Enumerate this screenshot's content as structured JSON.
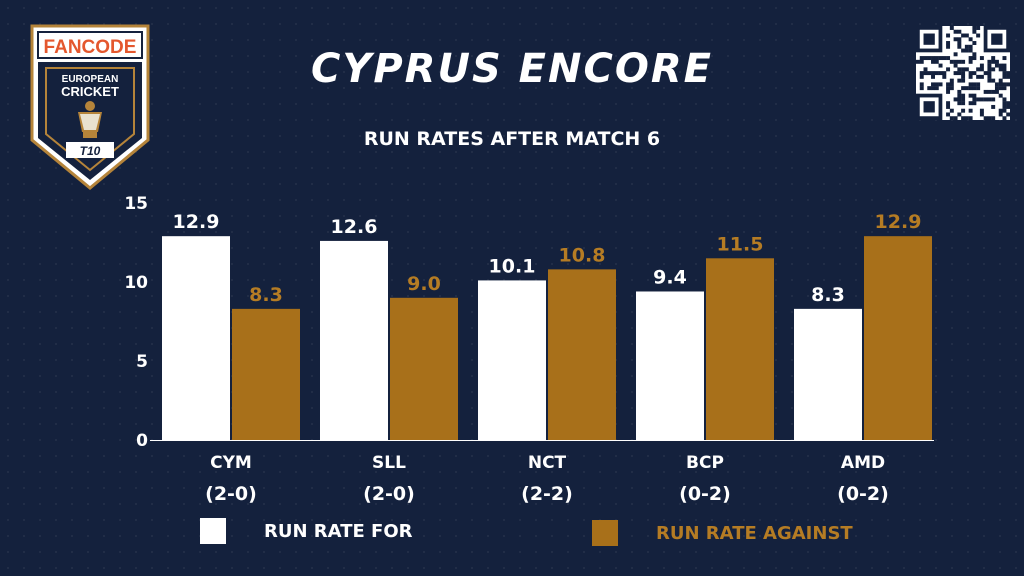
{
  "brand": {
    "name": "FANCODE",
    "line1": "EUROPEAN",
    "line2": "CRICKET",
    "badge": "T10"
  },
  "title": "CYPRUS ENCORE",
  "chart_data": {
    "type": "bar",
    "title": "RUN RATES AFTER MATCH 6",
    "categories": [
      "CYM",
      "SLL",
      "NCT",
      "BCP",
      "AMD"
    ],
    "records": [
      "(2-0)",
      "(2-0)",
      "(2-2)",
      "(0-2)",
      "(0-2)"
    ],
    "series": [
      {
        "name": "RUN RATE FOR",
        "values": [
          12.9,
          12.6,
          10.1,
          9.4,
          8.3
        ],
        "color": "#ffffff",
        "label_color": "#ffffff"
      },
      {
        "name": "RUN RATE AGAINST",
        "values": [
          8.3,
          9.0,
          10.8,
          11.5,
          12.9
        ],
        "color": "#a8701a",
        "label_color": "#b57c24"
      }
    ],
    "yticks": [
      0,
      5,
      10,
      15
    ],
    "ylim": [
      0,
      15
    ],
    "xlabel": "",
    "ylabel": "",
    "grid": false,
    "legend_position": "bottom"
  },
  "colors": {
    "background": "#14213d",
    "accent": "#a8701a"
  }
}
